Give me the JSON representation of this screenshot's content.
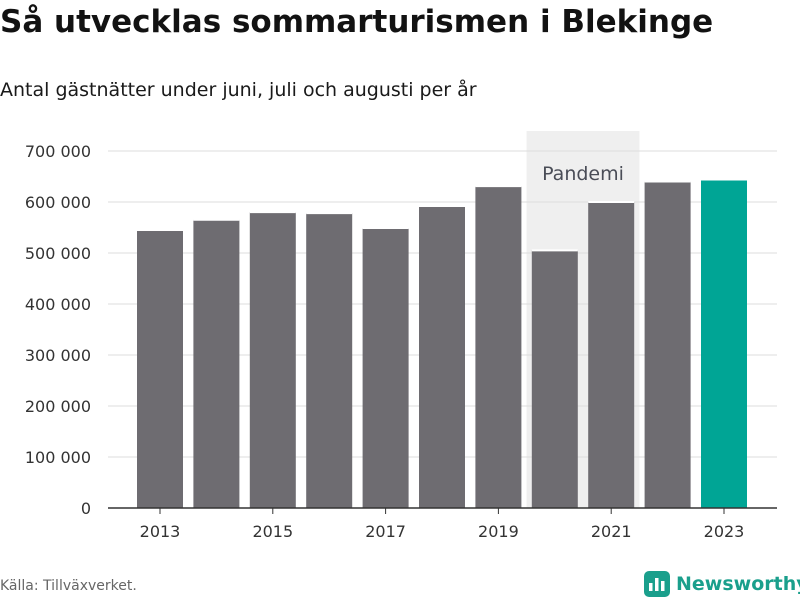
{
  "title": "Så utvecklas sommarturismen i Blekinge",
  "subtitle": "Antal gästnätter under juni, juli och augusti per år",
  "source": "Källa: Tillväxverket.",
  "brand": {
    "name": "Newsworthy",
    "icon": "newsworthy-logo-icon",
    "color": "#1a9f8c"
  },
  "chart_data": {
    "type": "bar",
    "categories": [
      "2013",
      "2014",
      "2015",
      "2016",
      "2017",
      "2018",
      "2019",
      "2020",
      "2021",
      "2022",
      "2023"
    ],
    "values": [
      545000,
      565000,
      580000,
      578000,
      549000,
      592000,
      631000,
      505000,
      600000,
      640000,
      644000
    ],
    "x_tick_labels": [
      "2013",
      "2015",
      "2017",
      "2019",
      "2021",
      "2023"
    ],
    "y_ticks": [
      0,
      100000,
      200000,
      300000,
      400000,
      500000,
      600000,
      700000
    ],
    "y_tick_labels": [
      "0",
      "100 000",
      "200 000",
      "300 000",
      "400 000",
      "500 000",
      "600 000",
      "700 000"
    ],
    "ylim": [
      0,
      745000
    ],
    "grid": true,
    "legend": "none",
    "highlight": {
      "category": "2023",
      "color": "#00a595"
    },
    "bar_color": "#6e6c71",
    "annotation": {
      "label": "Pandemi",
      "x_start": "2020",
      "x_end": "2021",
      "color": "#efefef",
      "text_color": "#4a4d57"
    }
  }
}
